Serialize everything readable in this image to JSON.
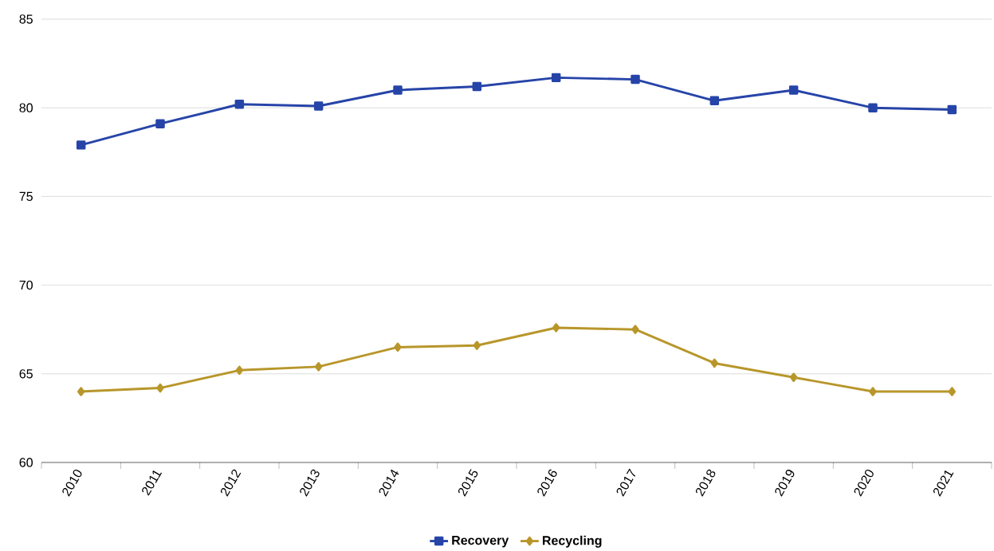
{
  "chart_data": {
    "type": "line",
    "categories": [
      "2010",
      "2011",
      "2012",
      "2013",
      "2014",
      "2015",
      "2016",
      "2017",
      "2018",
      "2019",
      "2020",
      "2021"
    ],
    "series": [
      {
        "name": "Recovery",
        "color": "#2644a8",
        "marker": "square",
        "values": [
          77.9,
          79.1,
          80.2,
          80.1,
          81.0,
          81.2,
          81.7,
          81.6,
          80.4,
          81.0,
          80.0,
          79.9
        ]
      },
      {
        "name": "Recycling",
        "color": "#b8962a",
        "marker": "diamond",
        "values": [
          64.0,
          64.2,
          65.2,
          65.4,
          66.5,
          66.6,
          67.6,
          67.5,
          65.6,
          64.8,
          64.0,
          64.0
        ]
      }
    ],
    "ylim": [
      60,
      85
    ],
    "yticks": [
      60,
      65,
      70,
      75,
      80,
      85
    ],
    "grid": "y",
    "legend": "bottom",
    "line_style": "solid"
  }
}
